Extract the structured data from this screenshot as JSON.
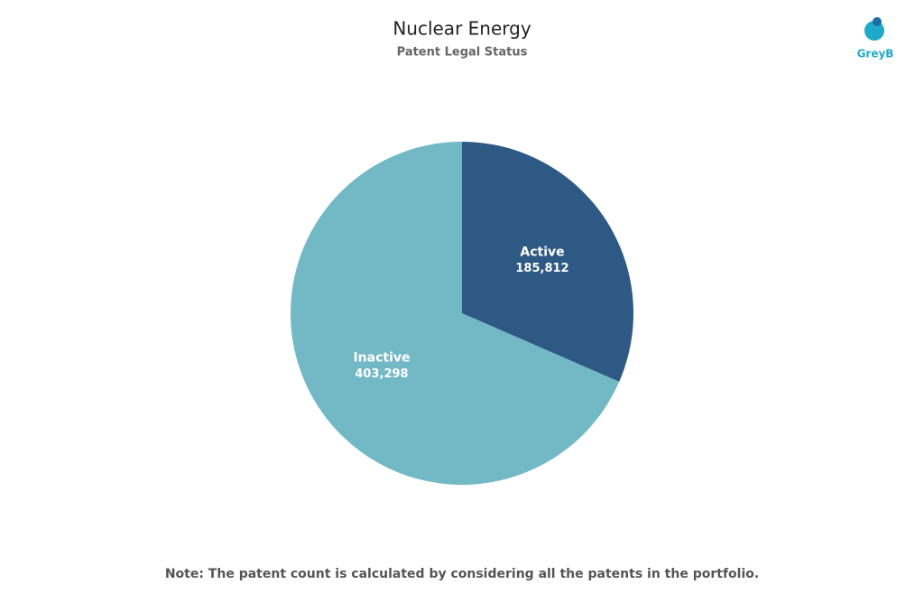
{
  "chart_data": {
    "type": "pie",
    "title": "Nuclear Energy",
    "subtitle": "Patent Legal Status",
    "categories": [
      "Active",
      "Inactive"
    ],
    "values": [
      185812,
      403298
    ],
    "value_labels": [
      "185,812",
      "403,298"
    ],
    "colors": [
      "#2e5984",
      "#73b8c5"
    ],
    "note": "Note: The patent count is calculated by considering all the patents in the portfolio.",
    "logo_text": "GreyB"
  }
}
